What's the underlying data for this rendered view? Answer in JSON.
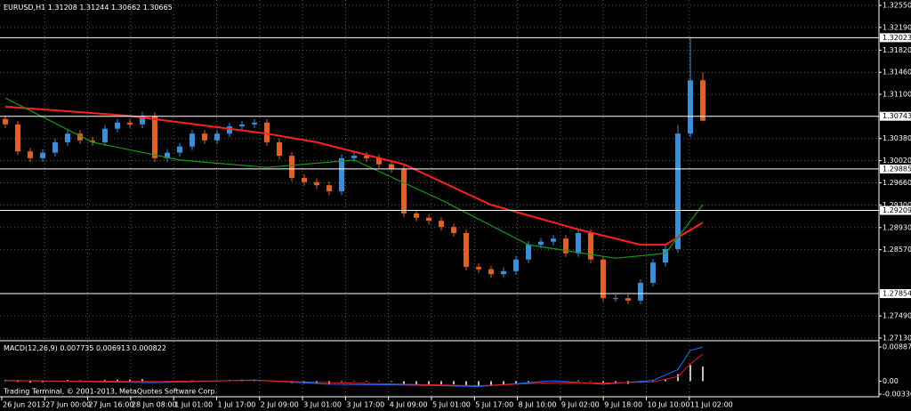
{
  "chart_data": {
    "type": "candlestick",
    "symbol": "EURUSD,H1",
    "quote": [
      1.31208,
      1.31244,
      1.30662,
      1.30665
    ],
    "up_color": "#3a8fd8",
    "down_color": "#e0602a",
    "open": [
      1.307,
      1.3061,
      1.3017,
      1.3006,
      1.3015,
      1.3032,
      1.3046,
      1.3035,
      1.3032,
      1.3054,
      1.3064,
      1.3061,
      1.3075,
      1.3006,
      1.3015,
      1.3025,
      1.3046,
      1.3035,
      1.3046,
      1.3058,
      1.3061,
      1.3064,
      1.3032,
      1.301,
      1.2974,
      1.2967,
      1.2962,
      1.2952,
      1.3006,
      1.301,
      1.3006,
      1.2996,
      1.2988,
      1.2916,
      1.2909,
      1.2904,
      1.2894,
      1.2884,
      1.2829,
      1.2825,
      1.2817,
      1.2822,
      1.2841,
      1.2865,
      1.287,
      1.2875,
      1.2851,
      1.2884,
      1.2841,
      1.2778,
      1.2778,
      1.2774,
      1.2803,
      1.2836,
      1.2858,
      1.3046,
      1.3133
    ],
    "high": [
      1.3076,
      1.3067,
      1.3023,
      1.3021,
      1.3038,
      1.3052,
      1.3052,
      1.3041,
      1.306,
      1.307,
      1.307,
      1.3081,
      1.3081,
      1.3021,
      1.3031,
      1.3052,
      1.3052,
      1.3052,
      1.3064,
      1.3067,
      1.307,
      1.307,
      1.3038,
      1.3016,
      1.298,
      1.2973,
      1.2968,
      1.3012,
      1.3016,
      1.3016,
      1.3012,
      1.3002,
      1.2994,
      1.2922,
      1.2915,
      1.291,
      1.29,
      1.289,
      1.2835,
      1.2831,
      1.2828,
      1.2847,
      1.2871,
      1.2876,
      1.2881,
      1.2881,
      1.289,
      1.289,
      1.2847,
      1.2784,
      1.2784,
      1.2809,
      1.2842,
      1.2864,
      1.306,
      1.3202,
      1.3146
    ],
    "low": [
      1.3055,
      1.3011,
      1.3,
      1.3,
      1.3009,
      1.3026,
      1.3029,
      1.3026,
      1.3026,
      1.3048,
      1.3055,
      1.3055,
      1.3,
      1.3,
      1.3009,
      1.3019,
      1.3029,
      1.3029,
      1.304,
      1.3052,
      1.3055,
      1.3026,
      1.3004,
      1.2968,
      1.2961,
      1.2956,
      1.2946,
      1.2946,
      1.3,
      1.3,
      1.299,
      1.2982,
      1.291,
      1.2903,
      1.2898,
      1.2888,
      1.2878,
      1.2823,
      1.2819,
      1.2811,
      1.2811,
      1.2816,
      1.2835,
      1.2859,
      1.2864,
      1.2845,
      1.2845,
      1.2835,
      1.2772,
      1.2772,
      1.2768,
      1.2768,
      1.2797,
      1.283,
      1.2852,
      1.304,
      1.3066
    ],
    "close": [
      1.3061,
      1.3017,
      1.3006,
      1.3015,
      1.3032,
      1.3046,
      1.3035,
      1.3032,
      1.3054,
      1.3064,
      1.3061,
      1.3075,
      1.3006,
      1.3015,
      1.3025,
      1.3046,
      1.3035,
      1.3046,
      1.3058,
      1.3061,
      1.3064,
      1.3032,
      1.301,
      1.2974,
      1.2967,
      1.2962,
      1.2952,
      1.3006,
      1.301,
      1.3006,
      1.2996,
      1.2988,
      1.2916,
      1.2909,
      1.2904,
      1.2894,
      1.2884,
      1.2829,
      1.2825,
      1.2817,
      1.2822,
      1.2841,
      1.2865,
      1.287,
      1.2875,
      1.2851,
      1.2884,
      1.2841,
      1.2778,
      1.2778,
      1.2774,
      1.2803,
      1.2836,
      1.2858,
      1.3046,
      1.3133,
      1.3067
    ],
    "ylim": [
      1.2713,
      1.3255
    ],
    "yticks": [
      {
        "value": 1.3255,
        "label": "1.32550"
      },
      {
        "value": 1.3219,
        "label": "1.32190"
      },
      {
        "value": 1.3182,
        "label": "1.31820"
      },
      {
        "value": 1.3146,
        "label": "1.31460"
      },
      {
        "value": 1.311,
        "label": "1.31100"
      },
      {
        "value": 1.3038,
        "label": "1.30380"
      },
      {
        "value": 1.3002,
        "label": "1.30020"
      },
      {
        "value": 1.2966,
        "label": "1.29660"
      },
      {
        "value": 1.293,
        "label": "1.29300"
      },
      {
        "value": 1.2893,
        "label": "1.28930"
      },
      {
        "value": 1.2857,
        "label": "1.28570"
      },
      {
        "value": 1.2749,
        "label": "1.27490"
      },
      {
        "value": 1.2713,
        "label": "1.27130"
      }
    ],
    "levels": [
      1.32023,
      1.30743,
      1.29885,
      1.29209,
      1.27854
    ],
    "level_color": "#ffffff",
    "grid": true,
    "x_labels": [
      "26 Jun 2013",
      "27 Jun 00:00",
      "27 Jun 16:00",
      "28 Jun 08:00",
      "1 Jul 01:00",
      "1 Jul 17:00",
      "2 Jul 09:00",
      "3 Jul 01:00",
      "3 Jul 17:00",
      "4 Jul 09:00",
      "5 Jul 01:00",
      "5 Jul 17:00",
      "8 Jul 10:00",
      "9 Jul 02:00",
      "9 Jul 18:00",
      "10 Jul 10:00",
      "11 Jul 02:00"
    ],
    "moving_averages": [
      {
        "color": "#ff2020",
        "index": [
          0,
          10,
          21,
          25,
          32,
          39,
          46,
          51,
          53,
          56
        ],
        "values": [
          1.309,
          1.3075,
          1.3046,
          1.3032,
          1.2996,
          1.293,
          1.289,
          1.2865,
          1.2865,
          1.2901
        ]
      },
      {
        "color": "#1a9a1a",
        "index": [
          0,
          7,
          14,
          21,
          28,
          35,
          42,
          49,
          53,
          56
        ],
        "values": [
          1.3104,
          1.3032,
          1.3003,
          1.2991,
          1.3003,
          1.2938,
          1.2865,
          1.2843,
          1.2851,
          1.293
        ]
      }
    ],
    "macd": {
      "title": "MACD(12,26,9)",
      "readings": [
        0.007735,
        0.006913,
        0.000822
      ],
      "ylim": [
        -0.003361,
        0.008879
      ],
      "yticks": [
        0.008879,
        {
          "value": 0,
          "label": "0.00"
        },
        -0.003361
      ],
      "histogram_color": "#c0c0c0",
      "histogram": [
        0.0003,
        -0.0002,
        -0.0004,
        -0.0003,
        0.0001,
        0.0003,
        0.0002,
        0.0001,
        0.0003,
        0.0004,
        0.0004,
        0.0005,
        -0.0002,
        -0.0003,
        -0.0001,
        0.0002,
        0.0001,
        0.0002,
        0.0003,
        0.0004,
        0.0004,
        0.0001,
        -0.0002,
        -0.0005,
        -0.0006,
        -0.0006,
        -0.0007,
        -0.0002,
        0,
        0,
        -0.0001,
        -0.0002,
        -0.0008,
        -0.0009,
        -0.0008,
        -0.0008,
        -0.0008,
        -0.0012,
        -0.0012,
        -0.0011,
        -0.001,
        -0.0007,
        -0.0003,
        -0.0001,
        0.0001,
        -0.0001,
        0.0002,
        -0.0001,
        -0.0006,
        -0.0007,
        -0.0007,
        -0.0004,
        0,
        0.0004,
        0.0018,
        0.0042,
        0.0038
      ],
      "lines": [
        {
          "color": "#1e6fff",
          "index": [
            0,
            12,
            20,
            26,
            32,
            38,
            44,
            48,
            52,
            54,
            55,
            56
          ],
          "values": [
            0.0002,
            -0.0004,
            0.0003,
            -0.0008,
            -0.001,
            -0.0014,
            0.0001,
            -0.0008,
            0.0002,
            0.003,
            0.008,
            0.0088
          ]
        },
        {
          "color": "#e02020",
          "index": [
            0,
            12,
            20,
            26,
            32,
            38,
            44,
            48,
            52,
            54,
            55,
            56
          ],
          "values": [
            0.0001,
            -0.0001,
            0.0002,
            -0.0004,
            -0.0008,
            -0.0012,
            -0.0004,
            -0.0005,
            -0.0002,
            0.0012,
            0.0045,
            0.007
          ]
        }
      ]
    },
    "footer": "Trading Terminal, © 2001-2013, MetaQuotes Software Corp."
  }
}
